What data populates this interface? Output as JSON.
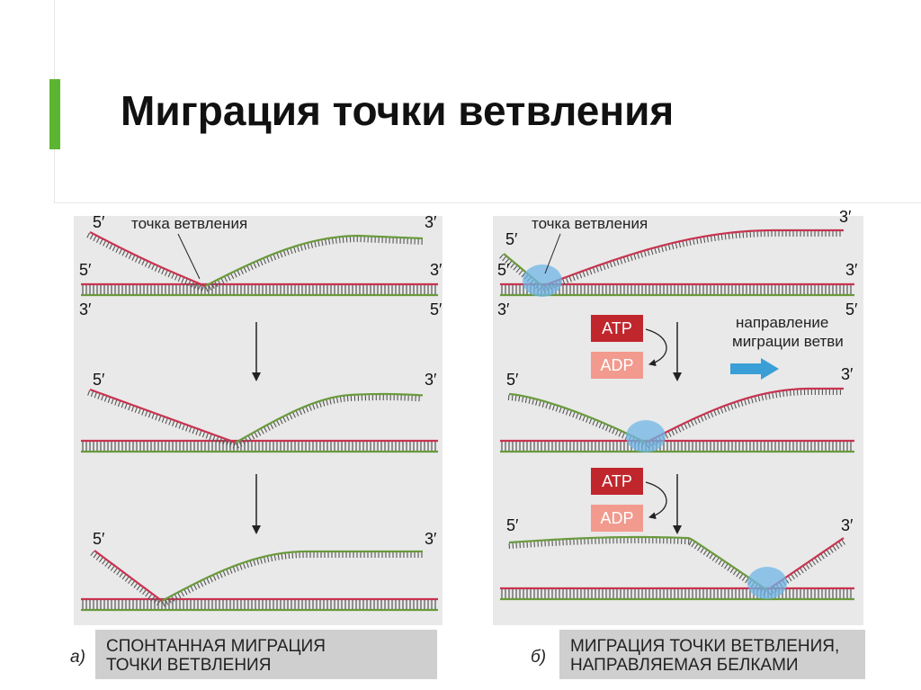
{
  "title": "Миграция точки ветвления",
  "colors": {
    "accent": "#5cb531",
    "strand_red": "#c8334f",
    "strand_green": "#6a9a3c",
    "panel_bg": "#e9e9e9",
    "protein": "#6fb6e6",
    "atp_box": "#c0272d",
    "adp_box": "#f29a8e",
    "direction_arrow": "#3a9fd6"
  },
  "panel_a": {
    "branch_label": "точка ветвления",
    "end_5": "5′",
    "end_3": "3′",
    "letter": "а)",
    "caption_line1": "СПОНТАННАЯ МИГРАЦИЯ",
    "caption_line2": "ТОЧКИ ВЕТВЛЕНИЯ"
  },
  "panel_b": {
    "branch_label": "точка ветвления",
    "end_5": "5′",
    "end_3": "3′",
    "atp": "ATP",
    "adp": "ADP",
    "direction_line1": "направление",
    "direction_line2": "миграции ветви",
    "letter": "б)",
    "caption_line1": "МИГРАЦИЯ ТОЧКИ ВЕТВЛЕНИЯ,",
    "caption_line2": "НАПРАВЛЯЕМАЯ БЕЛКАМИ"
  }
}
